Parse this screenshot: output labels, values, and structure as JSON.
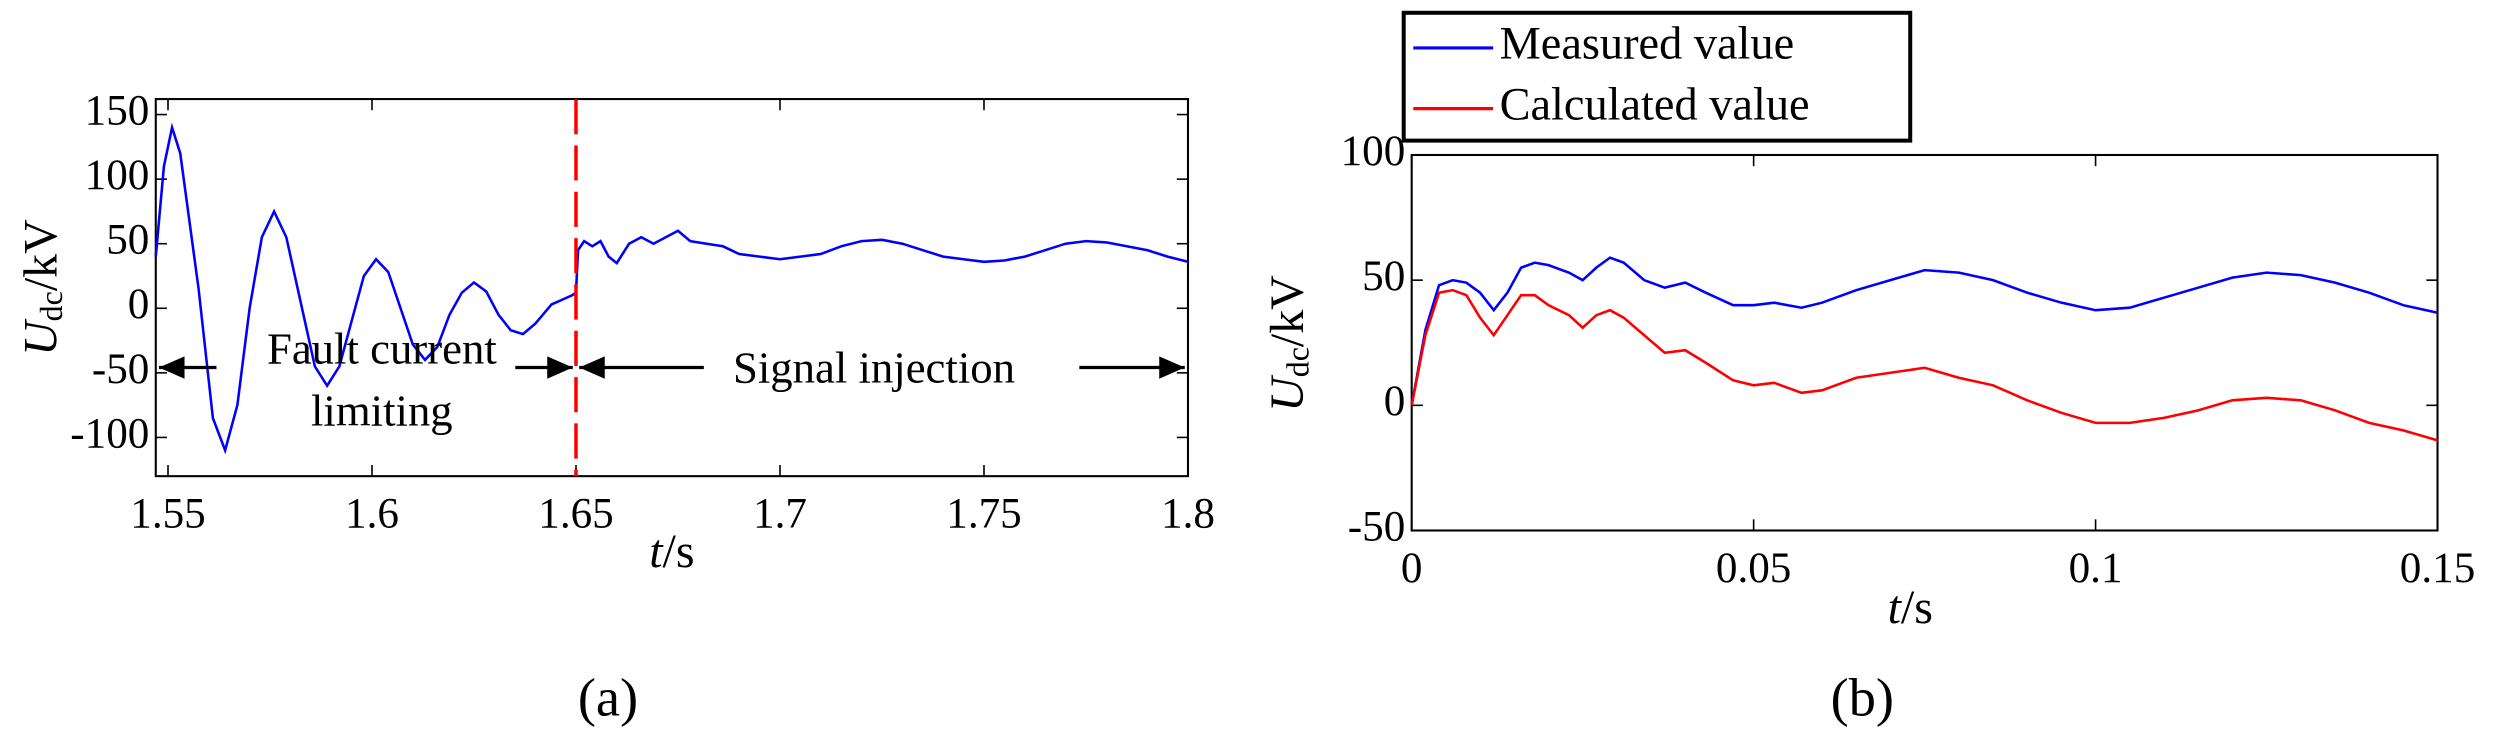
{
  "chart_data": [
    {
      "type": "line",
      "x": [
        1.547,
        1.549,
        1.551,
        1.553,
        1.5575,
        1.561,
        1.564,
        1.567,
        1.57,
        1.573,
        1.576,
        1.579,
        1.5825,
        1.586,
        1.589,
        1.592,
        1.595,
        1.598,
        1.601,
        1.604,
        1.607,
        1.61,
        1.613,
        1.616,
        1.619,
        1.622,
        1.625,
        1.628,
        1.631,
        1.634,
        1.637,
        1.64,
        1.644,
        1.649,
        1.65,
        1.6505,
        1.652,
        1.654,
        1.656,
        1.658,
        1.66,
        1.663,
        1.666,
        1.669,
        1.672,
        1.675,
        1.678,
        1.682,
        1.686,
        1.69,
        1.695,
        1.7,
        1.705,
        1.71,
        1.715,
        1.72,
        1.725,
        1.73,
        1.735,
        1.74,
        1.745,
        1.75,
        1.755,
        1.76,
        1.765,
        1.77,
        1.775,
        1.78,
        1.785,
        1.79,
        1.795,
        1.8
      ],
      "values": [
        40,
        110,
        140,
        120,
        15,
        -85,
        -110,
        -75,
        0,
        55,
        75,
        55,
        5,
        -45,
        -60,
        -45,
        -10,
        25,
        38,
        28,
        0,
        -28,
        -40,
        -30,
        -5,
        12,
        20,
        13,
        -5,
        -17,
        -20,
        -12,
        3,
        10,
        12,
        45,
        52,
        48,
        52,
        40,
        35,
        50,
        55,
        50,
        55,
        60,
        52,
        50,
        48,
        42,
        40,
        38,
        40,
        42,
        48,
        52,
        53,
        50,
        45,
        40,
        38,
        36,
        37,
        40,
        45,
        50,
        52,
        51,
        48,
        45,
        40,
        36
      ],
      "color": "#0000ff",
      "xlim": [
        1.547,
        1.8
      ],
      "ylim": [
        -130,
        162
      ],
      "xticks": [
        1.55,
        1.6,
        1.65,
        1.7,
        1.75,
        1.8
      ],
      "yticks": [
        150,
        100,
        50,
        0,
        -50,
        -100
      ],
      "divider_x": 1.65,
      "divider_color": "#ff0000",
      "annotations": [
        "Fault current",
        "limiting",
        "Signal injection"
      ],
      "x_label": {
        "symbol": "t",
        "unit": "/s"
      },
      "y_label": {
        "symbol": "U",
        "subscript": "dc",
        "unit": "/kV"
      },
      "caption": "(a)"
    },
    {
      "type": "line",
      "x": [
        0,
        0.002,
        0.004,
        0.006,
        0.008,
        0.01,
        0.012,
        0.014,
        0.016,
        0.018,
        0.02,
        0.023,
        0.025,
        0.027,
        0.029,
        0.031,
        0.034,
        0.037,
        0.04,
        0.043,
        0.047,
        0.05,
        0.053,
        0.057,
        0.06,
        0.065,
        0.07,
        0.075,
        0.08,
        0.085,
        0.09,
        0.095,
        0.1,
        0.105,
        0.11,
        0.115,
        0.12,
        0.125,
        0.13,
        0.135,
        0.14,
        0.145,
        0.15
      ],
      "series": [
        {
          "name": "Measured value",
          "color": "#0000ff",
          "values": [
            0,
            30,
            48,
            50,
            49,
            45,
            38,
            45,
            55,
            57,
            56,
            53,
            50,
            55,
            59,
            57,
            50,
            47,
            49,
            45,
            40,
            40,
            41,
            39,
            41,
            46,
            50,
            54,
            53,
            50,
            45,
            41,
            38,
            39,
            43,
            47,
            51,
            53,
            52,
            49,
            45,
            40,
            37
          ]
        },
        {
          "name": "Calculated value",
          "color": "#ff0000",
          "values": [
            0,
            28,
            45,
            46,
            44,
            35,
            28,
            36,
            44,
            44,
            40,
            36,
            31,
            36,
            38,
            35,
            28,
            21,
            22,
            17,
            10,
            8,
            9,
            5,
            6,
            11,
            13,
            15,
            11,
            8,
            2,
            -3,
            -7,
            -7,
            -5,
            -2,
            2,
            3,
            2,
            -2,
            -7,
            -10,
            -14
          ]
        }
      ],
      "xlim": [
        0,
        0.15
      ],
      "ylim": [
        -50,
        100
      ],
      "xticks": [
        0,
        0.05,
        0.1,
        0.15
      ],
      "yticks": [
        -50,
        0,
        50,
        100
      ],
      "legend": "top-left",
      "x_label": {
        "symbol": "t",
        "unit": "/s"
      },
      "y_label": {
        "symbol": "U",
        "subscript": "dc",
        "unit": "/kV"
      },
      "caption": "(b)"
    }
  ]
}
